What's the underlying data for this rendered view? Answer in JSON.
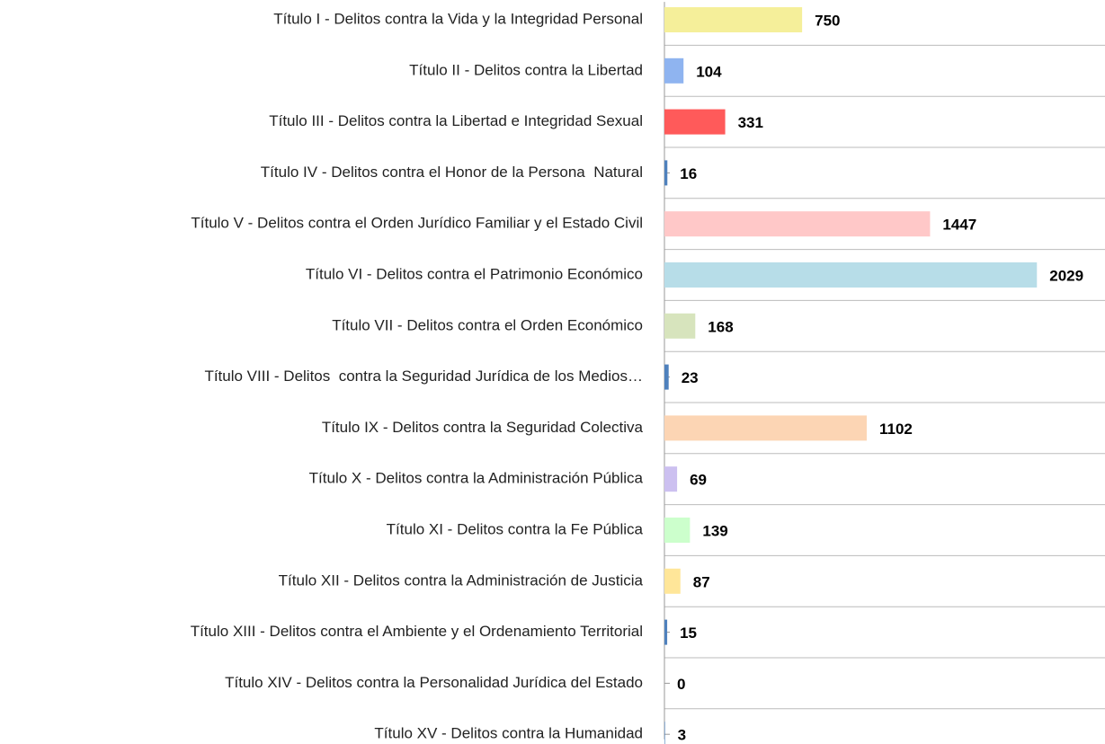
{
  "chart_data": {
    "type": "bar",
    "orientation": "horizontal",
    "categories": [
      "Título I - Delitos contra la Vida y la Integridad Personal",
      "Título II - Delitos contra la Libertad",
      "Título III - Delitos contra la Libertad e Integridad Sexual",
      "Título IV - Delitos contra el Honor de la Persona  Natural",
      "Título V - Delitos contra el Orden Jurídico Familiar y el Estado Civil",
      "Título VI - Delitos contra el Patrimonio Económico",
      "Título VII - Delitos contra el Orden Económico",
      "Título VIII - Delitos  contra la Seguridad Jurídica de los Medios…",
      "Título IX - Delitos contra la Seguridad Colectiva",
      "Título X - Delitos contra la Administración Pública",
      "Título XI - Delitos contra la Fe Pública",
      "Título XII - Delitos contra la Administración de Justicia",
      "Título XIII - Delitos contra el Ambiente y el Ordenamiento Territorial",
      "Título XIV - Delitos contra la Personalidad Jurídica del Estado",
      "Título XV - Delitos contra la Humanidad"
    ],
    "values": [
      750,
      104,
      331,
      16,
      1447,
      2029,
      168,
      23,
      1102,
      69,
      139,
      87,
      15,
      0,
      3
    ],
    "colors": [
      "#f5ef9a",
      "#8fb4f0",
      "#ff5a5a",
      "#4f81bd",
      "#ffc8c8",
      "#b7dde8",
      "#d7e4bd",
      "#4f81bd",
      "#fcd5b4",
      "#ccc0f0",
      "#ccffcc",
      "#ffe699",
      "#4f81bd",
      "#4f81bd",
      "#4f81bd"
    ],
    "xlim": [
      0,
      2400
    ],
    "grid": true
  }
}
